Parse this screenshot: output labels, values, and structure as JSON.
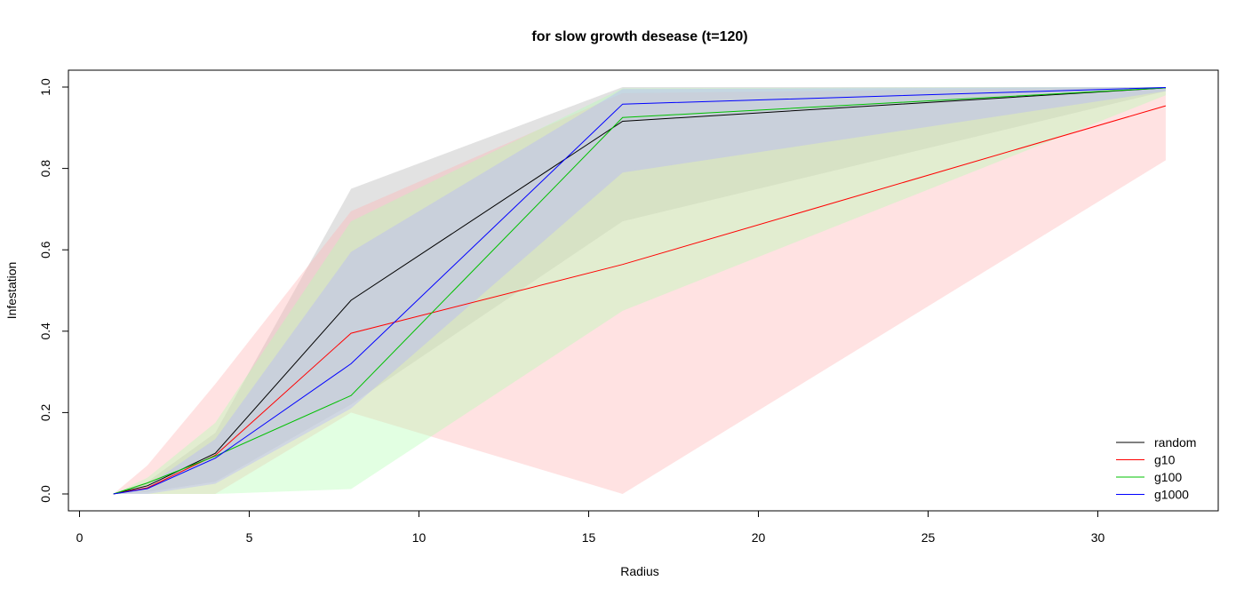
{
  "chart_data": {
    "type": "line",
    "title": "for slow growth desease (t=120)",
    "xlabel": "Radius",
    "ylabel": "Infestation",
    "xlim": [
      0,
      33
    ],
    "ylim": [
      0,
      1
    ],
    "xticks": [
      0,
      5,
      10,
      15,
      20,
      25,
      30
    ],
    "yticks": [
      0.0,
      0.2,
      0.4,
      0.6,
      0.8,
      1.0
    ],
    "ytick_labels": [
      "0.0",
      "0.2",
      "0.4",
      "0.6",
      "0.8",
      "1.0"
    ],
    "legend_position": "bottom-right",
    "x": [
      1,
      2,
      4,
      8,
      16,
      32
    ],
    "series": [
      {
        "name": "random",
        "color": "#000000",
        "band_color": "#b4b4b4",
        "values": [
          0.0,
          0.02,
          0.1,
          0.476,
          0.916,
          0.998
        ],
        "lower": [
          0.0,
          0.005,
          0.03,
          0.22,
          0.67,
          0.99
        ],
        "upper": [
          0.0,
          0.03,
          0.15,
          0.75,
          1.0,
          1.0
        ]
      },
      {
        "name": "g10",
        "color": "#ff0000",
        "band_color": "#ffb4b4",
        "values": [
          0.0,
          0.015,
          0.095,
          0.395,
          0.564,
          0.954
        ],
        "lower": [
          0.0,
          0.0,
          0.0,
          0.2,
          0.0,
          0.82
        ],
        "upper": [
          0.0,
          0.07,
          0.27,
          0.695,
          0.985,
          1.0
        ]
      },
      {
        "name": "g100",
        "color": "#00c000",
        "band_color": "#b4ffb4",
        "values": [
          0.0,
          0.027,
          0.093,
          0.242,
          0.925,
          0.998
        ],
        "lower": [
          0.0,
          0.0,
          0.0,
          0.012,
          0.45,
          0.98
        ],
        "upper": [
          0.0,
          0.04,
          0.175,
          0.67,
          0.997,
          1.0
        ]
      },
      {
        "name": "g1000",
        "color": "#0000ff",
        "band_color": "#b4b4ff",
        "values": [
          0.0,
          0.013,
          0.088,
          0.32,
          0.958,
          0.999
        ],
        "lower": [
          0.0,
          0.0,
          0.025,
          0.21,
          0.79,
          0.99
        ],
        "upper": [
          0.0,
          0.02,
          0.135,
          0.595,
          0.995,
          1.0
        ]
      }
    ]
  }
}
